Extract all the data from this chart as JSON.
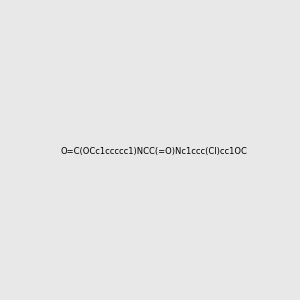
{
  "smiles": "O=C(OCc1ccccc1)NCC(=O)Nc1ccc(Cl)cc1OC",
  "image_size": 300,
  "background_color": "#e8e8e8",
  "bond_color": "#1a1a1a",
  "atom_colors": {
    "O": "#ff0000",
    "N": "#0000cc",
    "Cl": "#00aa00"
  },
  "title": ""
}
